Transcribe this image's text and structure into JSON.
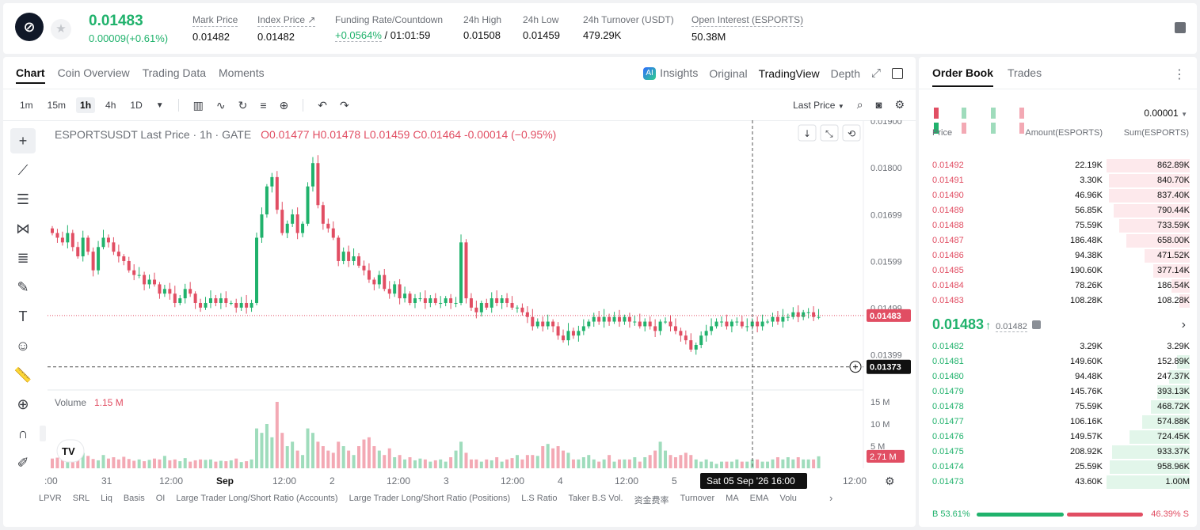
{
  "ticker": {
    "symbol_icon": "pixel-game-icon",
    "last_price": "0.01483",
    "change": "0.00009(+0.61%)",
    "stats": [
      {
        "label": "Mark Price",
        "value": "0.01482"
      },
      {
        "label": "Index Price ↗",
        "value": "0.01482"
      },
      {
        "label": "Funding Rate/Countdown",
        "value_green": "+0.0564%",
        "value": " / 01:01:59"
      },
      {
        "label": "24h High",
        "value": "0.01508"
      },
      {
        "label": "24h Low",
        "value": "0.01459"
      },
      {
        "label": "24h Turnover (USDT)",
        "value": "479.29K"
      },
      {
        "label": "Open Interest (ESPORTS)",
        "value": "50.38M"
      }
    ]
  },
  "chart_panel": {
    "tabs": [
      "Chart",
      "Coin Overview",
      "Trading Data",
      "Moments"
    ],
    "views": {
      "insights": "Insights",
      "ai_badge": "AI",
      "original": "Original",
      "tradingview": "TradingView",
      "depth": "Depth"
    },
    "intervals": [
      "1m",
      "15m",
      "1h",
      "4h",
      "1D"
    ],
    "price_type": "Last Price",
    "title": {
      "main": "ESPORTSUSDT Last Price · 1h · GATE",
      "ohlc": "O0.01477  H0.01478  L0.01459  C0.01464  -0.00014 (−0.95%)"
    },
    "volume_label": "Volume",
    "volume_value": "1.15 M",
    "tv_logo": "TV",
    "indicators": [
      "LPVR",
      "SRL",
      "Liq",
      "Basis",
      "OI",
      "Large Trader Long/Short Ratio (Accounts)",
      "Large Trader Long/Short Ratio (Positions)",
      "L.S Ratio",
      "Taker B.S Vol.",
      "资金费率",
      "Turnover",
      "MA",
      "EMA",
      "Volu"
    ]
  },
  "chart_data": {
    "type": "candlestick",
    "price_ticks": [
      "0.01900",
      "0.01800",
      "0.01699",
      "0.01599",
      "0.01499",
      "0.01399"
    ],
    "price_tick_values": [
      0.019,
      0.018,
      0.01699,
      0.01599,
      0.01499,
      0.01399
    ],
    "last_price_label": "0.01483",
    "last_price": 0.01483,
    "crosshair_price_label": "0.01373",
    "crosshair_price": 0.01373,
    "volume_ticks": [
      "15 M",
      "10 M",
      "5 M"
    ],
    "volume_tick_values": [
      15,
      10,
      5
    ],
    "last_volume_label": "2.71 M",
    "time_ticks": [
      ":00",
      "31",
      "12:00",
      "Sep",
      "12:00",
      "2",
      "12:00",
      "3",
      "12:00",
      "4",
      "12:00",
      "5",
      "12:00"
    ],
    "crosshair_time_label": "Sat 05 Sep '26   16:00",
    "closes": [
      0.0166,
      0.0165,
      0.0164,
      0.0166,
      0.0163,
      0.0161,
      0.0165,
      0.0162,
      0.0158,
      0.0163,
      0.0165,
      0.0164,
      0.0162,
      0.0161,
      0.016,
      0.0158,
      0.0157,
      0.0157,
      0.0155,
      0.0156,
      0.0155,
      0.0153,
      0.0154,
      0.0153,
      0.0151,
      0.0152,
      0.0154,
      0.0153,
      0.0151,
      0.015,
      0.0151,
      0.0152,
      0.0151,
      0.0152,
      0.0151,
      0.0151,
      0.015,
      0.0151,
      0.015,
      0.0151,
      0.0165,
      0.017,
      0.0176,
      0.0178,
      0.0171,
      0.0166,
      0.0168,
      0.017,
      0.0166,
      0.0168,
      0.0176,
      0.0181,
      0.0172,
      0.0168,
      0.0167,
      0.0165,
      0.016,
      0.0162,
      0.016,
      0.0161,
      0.0159,
      0.0158,
      0.0156,
      0.0155,
      0.0157,
      0.0154,
      0.0153,
      0.0155,
      0.0152,
      0.0153,
      0.0151,
      0.0152,
      0.0152,
      0.0151,
      0.0152,
      0.0151,
      0.0151,
      0.0152,
      0.0151,
      0.0151,
      0.0164,
      0.0152,
      0.015,
      0.0149,
      0.0151,
      0.015,
      0.0152,
      0.0151,
      0.0152,
      0.0151,
      0.015,
      0.015,
      0.0149,
      0.0148,
      0.0146,
      0.0147,
      0.0146,
      0.0147,
      0.0146,
      0.0144,
      0.0143,
      0.0145,
      0.0144,
      0.0145,
      0.0146,
      0.0147,
      0.0148,
      0.0147,
      0.0148,
      0.0147,
      0.0148,
      0.0147,
      0.0148,
      0.0147,
      0.0147,
      0.0146,
      0.0147,
      0.0146,
      0.0145,
      0.0147,
      0.0147,
      0.0146,
      0.0145,
      0.0144,
      0.0143,
      0.0141,
      0.0142,
      0.0144,
      0.0145,
      0.0146,
      0.0147,
      0.0147,
      0.0146,
      0.0147,
      0.0147,
      0.0146,
      0.0146,
      0.0147,
      0.0146,
      0.0147,
      0.0147,
      0.0148,
      0.0147,
      0.0148,
      0.0148,
      0.0149,
      0.0148,
      0.0149,
      0.0149,
      0.0148,
      0.0148
    ],
    "volumes": [
      2.2,
      2.4,
      2.0,
      2.5,
      3.1,
      2.0,
      3.5,
      2.8,
      2.1,
      1.8,
      3.0,
      2.2,
      2.5,
      2.0,
      2.6,
      2.1,
      1.7,
      2.0,
      1.6,
      1.9,
      2.2,
      2.0,
      2.8,
      1.8,
      2.0,
      1.6,
      2.3,
      1.5,
      1.8,
      2.0,
      1.9,
      2.0,
      1.5,
      1.7,
      1.6,
      1.8,
      2.2,
      1.4,
      1.6,
      2.0,
      9.0,
      8.0,
      10.0,
      7.0,
      15.0,
      8.0,
      5.0,
      6.0,
      4.0,
      3.0,
      9.0,
      8.0,
      6.0,
      5.0,
      4.0,
      3.5,
      6.0,
      5.0,
      4.0,
      3.0,
      5.0,
      6.5,
      7.0,
      5.0,
      4.0,
      3.0,
      4.5,
      2.5,
      3.0,
      2.0,
      2.5,
      1.8,
      2.2,
      2.0,
      1.5,
      1.8,
      2.0,
      1.5,
      2.5,
      4.0,
      6.0,
      3.5,
      2.0,
      2.0,
      1.5,
      2.0,
      1.8,
      2.5,
      1.5,
      2.0,
      2.3,
      3.0,
      2.0,
      3.0,
      3.0,
      2.8,
      5.0,
      5.5,
      4.5,
      5.0,
      4.0,
      3.5,
      2.0,
      2.0,
      2.5,
      3.0,
      2.0,
      1.5,
      2.0,
      3.0,
      1.5,
      2.0,
      2.0,
      2.0,
      2.5,
      1.5,
      2.5,
      3.0,
      4.0,
      6.0,
      4.0,
      3.0,
      2.5,
      3.0,
      3.5,
      3.0,
      2.0,
      1.5,
      2.0,
      1.5,
      1.0,
      1.5,
      1.5,
      1.5,
      2.0,
      1.5,
      1.5,
      2.0,
      2.0,
      1.5,
      1.5,
      2.0,
      2.5,
      2.0,
      2.5,
      2.0,
      2.5,
      2.0,
      2.0,
      2.0,
      2.71
    ]
  },
  "orderbook": {
    "tabs": [
      "Order Book",
      "Trades"
    ],
    "precision": "0.00001",
    "headers": {
      "price": "Price",
      "amount": "Amount(ESPORTS)",
      "sum": "Sum(ESPORTS)"
    },
    "asks": [
      {
        "price": "0.01492",
        "amount": "22.19K",
        "sum": "862.89K",
        "depth": 1.0
      },
      {
        "price": "0.01491",
        "amount": "3.30K",
        "sum": "840.70K",
        "depth": 0.974
      },
      {
        "price": "0.01490",
        "amount": "46.96K",
        "sum": "837.40K",
        "depth": 0.97
      },
      {
        "price": "0.01489",
        "amount": "56.85K",
        "sum": "790.44K",
        "depth": 0.916
      },
      {
        "price": "0.01488",
        "amount": "75.59K",
        "sum": "733.59K",
        "depth": 0.85
      },
      {
        "price": "0.01487",
        "amount": "186.48K",
        "sum": "658.00K",
        "depth": 0.762
      },
      {
        "price": "0.01486",
        "amount": "94.38K",
        "sum": "471.52K",
        "depth": 0.546
      },
      {
        "price": "0.01485",
        "amount": "190.60K",
        "sum": "377.14K",
        "depth": 0.437
      },
      {
        "price": "0.01484",
        "amount": "78.26K",
        "sum": "186.54K",
        "depth": 0.216
      },
      {
        "price": "0.01483",
        "amount": "108.28K",
        "sum": "108.28K",
        "depth": 0.125
      }
    ],
    "mid_price": "0.01483",
    "mid_arrow": "↑",
    "mid_mark": "0.01482",
    "bids": [
      {
        "price": "0.01482",
        "amount": "3.29K",
        "sum": "3.29K",
        "depth": 0.003
      },
      {
        "price": "0.01481",
        "amount": "149.60K",
        "sum": "152.89K",
        "depth": 0.153
      },
      {
        "price": "0.01480",
        "amount": "94.48K",
        "sum": "247.37K",
        "depth": 0.247
      },
      {
        "price": "0.01479",
        "amount": "145.76K",
        "sum": "393.13K",
        "depth": 0.393
      },
      {
        "price": "0.01478",
        "amount": "75.59K",
        "sum": "468.72K",
        "depth": 0.469
      },
      {
        "price": "0.01477",
        "amount": "106.16K",
        "sum": "574.88K",
        "depth": 0.575
      },
      {
        "price": "0.01476",
        "amount": "149.57K",
        "sum": "724.45K",
        "depth": 0.724
      },
      {
        "price": "0.01475",
        "amount": "208.92K",
        "sum": "933.37K",
        "depth": 0.933
      },
      {
        "price": "0.01474",
        "amount": "25.59K",
        "sum": "958.96K",
        "depth": 0.959
      },
      {
        "price": "0.01473",
        "amount": "43.60K",
        "sum": "1.00M",
        "depth": 1.0
      }
    ],
    "buy_ratio": "B 53.61%",
    "sell_ratio": "46.39% S",
    "buy_fraction": 0.5361
  },
  "colors": {
    "up": "#20b26c",
    "down": "#e14e63",
    "up_light": "#9fdcbc",
    "down_light": "#f3a9b4"
  }
}
